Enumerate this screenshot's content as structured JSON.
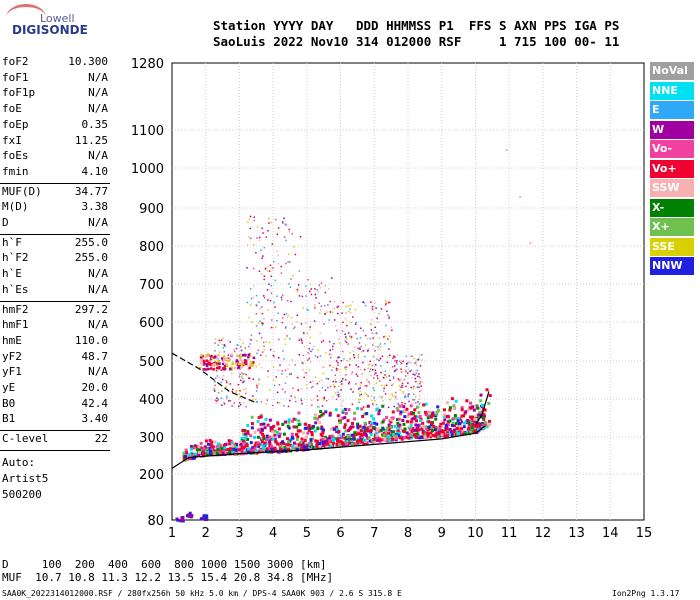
{
  "logo": {
    "top": "Lowell",
    "main": "DIGISONDE"
  },
  "header": {
    "line1": "Station YYYY DAY   DDD HHMMSS P1  FFS S AXN PPS IGA PS",
    "line2": "SaoLuis 2022 Nov10 314 012000 RSF     1 715 100 00- 11"
  },
  "params": [
    {
      "k": "foF2",
      "v": "10.300"
    },
    {
      "k": "foF1",
      "v": "N/A"
    },
    {
      "k": "foF1p",
      "v": "N/A"
    },
    {
      "k": "foE",
      "v": "N/A"
    },
    {
      "k": "foEp",
      "v": "0.35"
    },
    {
      "k": "fxI",
      "v": "11.25"
    },
    {
      "k": "foEs",
      "v": "N/A"
    },
    {
      "k": "fmin",
      "v": "4.10"
    },
    {
      "k": "MUF(D)",
      "v": "34.77"
    },
    {
      "k": "M(D)",
      "v": "3.38"
    },
    {
      "k": "D",
      "v": "N/A"
    },
    {
      "k": "h`F",
      "v": "255.0"
    },
    {
      "k": "h`F2",
      "v": "255.0"
    },
    {
      "k": "h`E",
      "v": "N/A"
    },
    {
      "k": "h`Es",
      "v": "N/A"
    },
    {
      "k": "hmF2",
      "v": "297.2"
    },
    {
      "k": "hmF1",
      "v": "N/A"
    },
    {
      "k": "hmE",
      "v": "110.0"
    },
    {
      "k": "yF2",
      "v": "48.7"
    },
    {
      "k": "yF1",
      "v": "N/A"
    },
    {
      "k": "yE",
      "v": "20.0"
    },
    {
      "k": "B0",
      "v": "42.4"
    },
    {
      "k": "B1",
      "v": "3.40"
    },
    {
      "k": "C-level",
      "v": "22"
    }
  ],
  "auto": {
    "line1": "Auto:",
    "line2": "Artist5",
    "line3": "500200"
  },
  "footer": {
    "d_row": "D     100  200  400  600  800 1000 1500 3000 [km]",
    "muf_row": "MUF  10.7 10.8 11.3 12.2 13.5 15.4 20.8 34.8 [MHz]",
    "file_line": "SAA0K_2022314012000.RSF / 280fx256h 50 kHz 5.0 km / DPS-4 SAA0K 903 / 2.6 S 315.8 E",
    "version": "Ion2Png 1.3.17"
  },
  "legend": [
    {
      "label": "NoVal",
      "color": "#a0a0a0"
    },
    {
      "label": "NNE",
      "color": "#00e0f0"
    },
    {
      "label": "E",
      "color": "#30a8f8"
    },
    {
      "label": "W",
      "color": "#a000a0"
    },
    {
      "label": "Vo-",
      "color": "#f040a0"
    },
    {
      "label": "Vo+",
      "color": "#f00030"
    },
    {
      "label": "SSW",
      "color": "#f8b0b0"
    },
    {
      "label": "X-",
      "color": "#008000"
    },
    {
      "label": "X+",
      "color": "#70c050"
    },
    {
      "label": "SSE",
      "color": "#d8d000"
    },
    {
      "label": "NNW",
      "color": "#2020e0"
    }
  ],
  "chart_data": {
    "type": "scatter",
    "xlim": [
      1,
      15
    ],
    "x_ticks": [
      "1",
      "2",
      "3",
      "4",
      "5",
      "6",
      "7",
      "8",
      "9",
      "10",
      "11",
      "12",
      "13",
      "14",
      "15"
    ],
    "y_ticks": [
      {
        "value": 80,
        "label": "80"
      },
      {
        "value": 200,
        "label": "200"
      },
      {
        "value": 300,
        "label": "300"
      },
      {
        "value": 400,
        "label": "400"
      },
      {
        "value": 500,
        "label": "500"
      },
      {
        "value": 600,
        "label": "600"
      },
      {
        "value": 700,
        "label": "700"
      },
      {
        "value": 800,
        "label": "800"
      },
      {
        "value": 900,
        "label": "900"
      },
      {
        "value": 1000,
        "label": "1000"
      },
      {
        "value": 1100,
        "label": "1100"
      },
      {
        "value": 1280,
        "label": "1280"
      }
    ],
    "y_scale": "log-like ionogram height",
    "grid": true,
    "series": [
      {
        "name": "F-trace",
        "values": [
          [
            1.3,
            240
          ],
          [
            2,
            255
          ],
          [
            3,
            258
          ],
          [
            4,
            262
          ],
          [
            5,
            270
          ],
          [
            6,
            280
          ],
          [
            7,
            290
          ],
          [
            8,
            300
          ],
          [
            9,
            305
          ],
          [
            10,
            315
          ],
          [
            10.3,
            330
          ]
        ]
      },
      {
        "name": "F-scatter",
        "values": [
          [
            2.3,
            500
          ],
          [
            3,
            510
          ],
          [
            4,
            520
          ],
          [
            5,
            540
          ],
          [
            6,
            560
          ],
          [
            7,
            420
          ],
          [
            8,
            400
          ]
        ]
      },
      {
        "name": "Es-low",
        "values": [
          [
            1.2,
            80
          ],
          [
            1.5,
            90
          ],
          [
            1.9,
            85
          ]
        ]
      }
    ],
    "profile_lines": [
      {
        "points": [
          [
            1,
            215
          ],
          [
            1.5,
            245
          ],
          [
            3,
            255
          ],
          [
            5,
            265
          ],
          [
            7,
            280
          ],
          [
            9,
            295
          ],
          [
            10,
            310
          ],
          [
            10.3,
            330
          ]
        ]
      },
      {
        "points": [
          [
            1,
            520
          ],
          [
            1.8,
            480
          ],
          [
            2.7,
            420
          ],
          [
            3.5,
            390
          ]
        ]
      },
      {
        "points": [
          [
            10,
            330
          ],
          [
            10.2,
            360
          ],
          [
            10.4,
            420
          ]
        ]
      }
    ]
  }
}
